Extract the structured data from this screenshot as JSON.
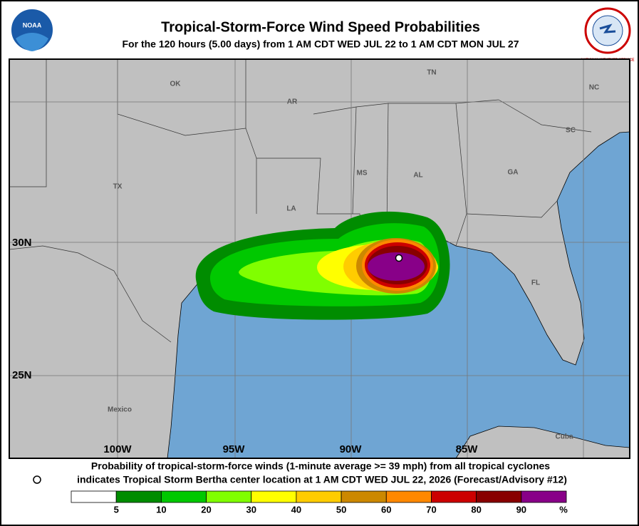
{
  "header": {
    "title": "Tropical-Storm-Force Wind Speed Probabilities",
    "subtitle": "For the 120 hours (5.00 days) from 1 AM CDT WED JUL 22 to 1 AM CDT MON JUL 27",
    "left_logo": "NOAA",
    "right_logo": "NATIONAL WEATHER SERVICE"
  },
  "map": {
    "regions": [
      "OK",
      "AR",
      "TN",
      "NC",
      "SC",
      "MS",
      "AL",
      "GA",
      "TX",
      "LA",
      "FL",
      "Mexico",
      "Cuba"
    ],
    "latitudes": [
      "30N",
      "25N"
    ],
    "longitudes": [
      "100W",
      "95W",
      "90W",
      "85W"
    ]
  },
  "footer": {
    "line1": "Probability of tropical-storm-force winds (1-minute average >= 39 mph) from all tropical cyclones",
    "line2": "indicates Tropical Storm Bertha center location at 1 AM CDT WED JUL 22, 2026 (Forecast/Advisory #12)"
  },
  "legend": {
    "labels": [
      5,
      10,
      20,
      30,
      40,
      50,
      60,
      70,
      80,
      90
    ],
    "unit": "%",
    "colors": [
      "#ffffff",
      "#008c00",
      "#00c800",
      "#80ff00",
      "#ffff00",
      "#ffcc00",
      "#cc8800",
      "#ff8800",
      "#cc0000",
      "#880000",
      "#880088"
    ]
  }
}
